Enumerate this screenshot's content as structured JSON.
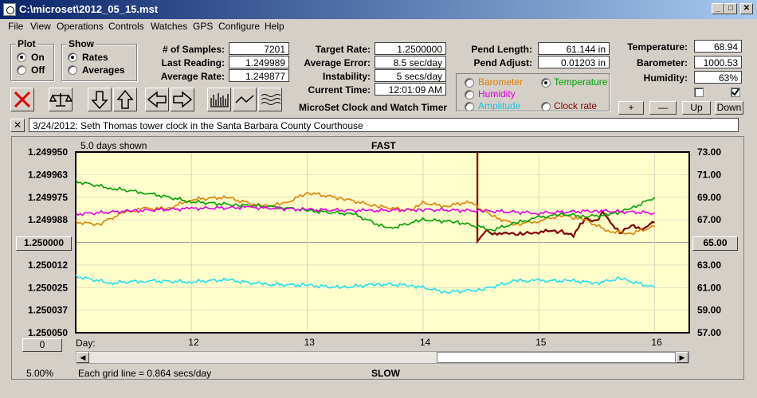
{
  "window": {
    "title": "C:\\microset\\2012_05_15.mst"
  },
  "menu": [
    "File",
    "View",
    "Operations",
    "Controls",
    "Watches",
    "GPS",
    "Configure",
    "Help"
  ],
  "plot_group": {
    "title": "Plot",
    "options": [
      "On",
      "Off"
    ],
    "selected": "On"
  },
  "show_group": {
    "title": "Show",
    "options": [
      "Rates",
      "Averages"
    ],
    "selected": "Rates"
  },
  "stats": {
    "samples_label": "# of Samples:",
    "samples": "7201",
    "last_label": "Last Reading:",
    "last": "1.249989",
    "avg_label": "Average Rate:",
    "avg": "1.249877",
    "target_label": "Target Rate:",
    "target": "1.2500000",
    "error_label": "Average Error:",
    "error": "8.5 sec/day",
    "instab_label": "Instability:",
    "instab": "5 secs/day",
    "time_label": "Current Time:",
    "time": "12:01:09 AM",
    "pend_label": "Pend Length:",
    "pend": "61.144 in",
    "adjust_label": "Pend Adjust:",
    "adjust": "0.01203 in",
    "temp_label": "Temperature:",
    "temp": "68.94",
    "baro_label": "Barometer:",
    "baro": "1000.53",
    "hum_label": "Humidity:",
    "hum": "63%"
  },
  "app_caption": "MicroSet Clock and Watch Timer",
  "sensor_options": {
    "barometer": "Barometer",
    "temperature": "Temperature",
    "humidity": "Humidity",
    "amplitude": "Amplitude",
    "clock_rate": "Clock rate"
  },
  "scale_buttons": {
    "plus": "+",
    "minus": "—",
    "up": "Up",
    "down": "Down"
  },
  "note": "3/24/2012: Seth Thomas tower clock in the Santa Barbara County Courthouse",
  "close_x": "✕",
  "colors": {
    "rate": "#800000",
    "temperature": "#e08000",
    "barometer": "#00a000",
    "humidity": "#e000e0",
    "amplitude": "#20e0f0",
    "plot_bg": "#ffffcc"
  },
  "chart_header": {
    "days_shown": "5.0 days shown",
    "fast": "FAST",
    "slow": "SLOW",
    "center_left": "1.250000",
    "center_right": "65.00",
    "zero_btn": "0",
    "day_label": "Day:",
    "percent": "5.00%",
    "grid_note": "Each grid line = 0.864 secs/day"
  },
  "chart_data": {
    "type": "line",
    "y_left_ticks": [
      "1.249950",
      "1.249963",
      "1.249975",
      "1.249988",
      "1.250000",
      "1.250012",
      "1.250025",
      "1.250037",
      "1.250050"
    ],
    "y_right_ticks": [
      "73.00",
      "71.00",
      "69.00",
      "67.00",
      "65.00",
      "63.00",
      "61.00",
      "59.00",
      "57.00"
    ],
    "y_left_range": [
      1.24995,
      1.25005
    ],
    "y_right_range": [
      57,
      73
    ],
    "x_ticks": [
      "12",
      "13",
      "14",
      "15",
      "16"
    ],
    "x_range": [
      11,
      16.3
    ],
    "series": [
      {
        "key": "rate",
        "axis": "left",
        "x": [
          14.47,
          14.47,
          14.55,
          14.6,
          14.7,
          14.8,
          14.9,
          15.0,
          15.1,
          15.2,
          15.3,
          15.4,
          15.5,
          15.55,
          15.6,
          15.7,
          15.8,
          15.9,
          16.0
        ],
        "y": [
          1.24995,
          1.25,
          1.249993,
          1.249996,
          1.249994,
          1.249996,
          1.249995,
          1.249994,
          1.249994,
          1.249994,
          1.249996,
          1.249987,
          1.249988,
          1.249983,
          1.249987,
          1.249995,
          1.249991,
          1.249992,
          1.249989
        ]
      },
      {
        "key": "temperature",
        "axis": "right",
        "x": [
          11,
          11.2,
          11.4,
          11.6,
          11.8,
          12.0,
          12.3,
          12.6,
          12.8,
          13.0,
          13.3,
          13.6,
          13.9,
          14.0,
          14.2,
          14.4,
          14.6,
          14.8,
          15.0,
          15.2,
          15.4,
          15.6,
          15.8,
          16.0
        ],
        "y": [
          66.8,
          66.6,
          67.6,
          68.0,
          68.0,
          68.8,
          69.0,
          68.2,
          68.4,
          69.4,
          68.9,
          68.2,
          67.8,
          68.5,
          68.2,
          68.6,
          67.3,
          66.6,
          66.9,
          67.4,
          67.0,
          66.0,
          65.8,
          66.4
        ]
      },
      {
        "key": "barometer",
        "axis": "right",
        "x": [
          11,
          11.3,
          11.6,
          12.0,
          12.4,
          12.8,
          13.0,
          13.4,
          13.7,
          14.0,
          14.3,
          14.6,
          14.8,
          15.0,
          15.2,
          15.4,
          15.6,
          15.8,
          16.0
        ],
        "y": [
          70.4,
          69.8,
          69.4,
          68.6,
          68.3,
          68.1,
          67.8,
          67.5,
          66.2,
          67.0,
          66.8,
          66.1,
          66.7,
          67.2,
          67.5,
          67.3,
          67.4,
          68.0,
          69.0
        ]
      },
      {
        "key": "humidity",
        "axis": "right",
        "x": [
          11,
          11.5,
          12.0,
          12.5,
          13.0,
          13.5,
          14.0,
          14.5,
          15.0,
          15.5,
          16.0
        ],
        "y": [
          67.5,
          67.8,
          68.0,
          68.1,
          67.9,
          67.8,
          67.9,
          67.8,
          67.6,
          67.8,
          67.6
        ]
      },
      {
        "key": "amplitude",
        "axis": "right",
        "x": [
          11,
          11.3,
          11.6,
          12.0,
          12.3,
          12.6,
          13.0,
          13.3,
          13.6,
          13.9,
          14.2,
          14.5,
          14.8,
          15.0,
          15.3,
          15.5,
          15.7,
          16.0
        ],
        "y": [
          62.0,
          61.4,
          61.6,
          61.5,
          61.7,
          61.3,
          61.2,
          61.0,
          61.3,
          61.2,
          60.6,
          60.8,
          61.6,
          61.6,
          61.6,
          61.4,
          61.8,
          61.0
        ]
      }
    ]
  }
}
